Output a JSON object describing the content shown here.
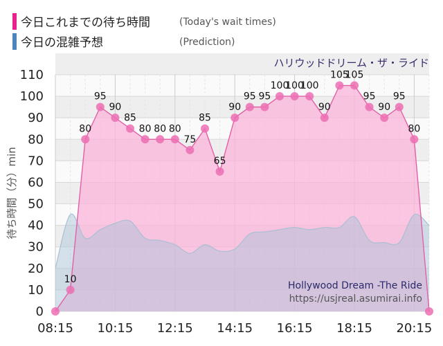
{
  "legend": {
    "today_label": "今日これまでの待ち時間",
    "today_sub": "(Today's wait times)",
    "pred_label": "今日の混雑予想",
    "pred_sub": "(Prediction)"
  },
  "watermark": {
    "attraction": "Hollywood Dream -The Ride",
    "url": "https://usjreal.asumirai.info"
  },
  "chart_data": {
    "type": "area",
    "title": "",
    "subtitle": "ハリウッドドリーム・ザ・ライド",
    "xlabel": "",
    "ylabel": "待ち時間（分）min",
    "ylim": [
      0,
      110
    ],
    "yticks": [
      0,
      10,
      20,
      30,
      40,
      50,
      60,
      70,
      80,
      90,
      100,
      110
    ],
    "x_tick_labels": [
      "08:15",
      "10:15",
      "12:15",
      "14:15",
      "16:15",
      "18:15",
      "20:15"
    ],
    "grid": true,
    "legend_position": "top-left",
    "colors": {
      "today_line": "#e060a8",
      "today_fill": "#f9b4d9",
      "today_marker": "#ec6fb3",
      "pred_line": "#a9bfd3",
      "pred_fill": "#a7c2d8",
      "legend_today": "#e8228d",
      "legend_pred": "#4a86b8",
      "band": "#eeeeee"
    },
    "series": [
      {
        "name": "今日これまでの待ち時間",
        "points": [
          {
            "t": "08:15",
            "v": 0
          },
          {
            "t": "08:45",
            "v": 10
          },
          {
            "t": "09:15",
            "v": 80
          },
          {
            "t": "09:45",
            "v": 95
          },
          {
            "t": "10:15",
            "v": 90
          },
          {
            "t": "10:45",
            "v": 85
          },
          {
            "t": "11:15",
            "v": 80
          },
          {
            "t": "11:45",
            "v": 80
          },
          {
            "t": "12:15",
            "v": 80
          },
          {
            "t": "12:45",
            "v": 75
          },
          {
            "t": "13:15",
            "v": 85
          },
          {
            "t": "13:45",
            "v": 65
          },
          {
            "t": "14:15",
            "v": 90
          },
          {
            "t": "14:45",
            "v": 95
          },
          {
            "t": "15:15",
            "v": 95
          },
          {
            "t": "15:45",
            "v": 100
          },
          {
            "t": "16:15",
            "v": 100
          },
          {
            "t": "16:45",
            "v": 100
          },
          {
            "t": "17:15",
            "v": 90
          },
          {
            "t": "17:45",
            "v": 105
          },
          {
            "t": "18:15",
            "v": 105
          },
          {
            "t": "18:45",
            "v": 95
          },
          {
            "t": "19:15",
            "v": 90
          },
          {
            "t": "19:45",
            "v": 95
          },
          {
            "t": "20:15",
            "v": 80
          },
          {
            "t": "20:45",
            "v": 0
          }
        ]
      },
      {
        "name": "今日の混雑予想",
        "points": [
          {
            "t": "08:15",
            "v": 20
          },
          {
            "t": "08:45",
            "v": 45
          },
          {
            "t": "09:15",
            "v": 34
          },
          {
            "t": "09:45",
            "v": 38
          },
          {
            "t": "10:15",
            "v": 41
          },
          {
            "t": "10:45",
            "v": 42
          },
          {
            "t": "11:15",
            "v": 34
          },
          {
            "t": "11:45",
            "v": 33
          },
          {
            "t": "12:15",
            "v": 31
          },
          {
            "t": "12:45",
            "v": 27
          },
          {
            "t": "13:15",
            "v": 31
          },
          {
            "t": "13:45",
            "v": 28
          },
          {
            "t": "14:15",
            "v": 29
          },
          {
            "t": "14:45",
            "v": 36
          },
          {
            "t": "15:15",
            "v": 37
          },
          {
            "t": "15:45",
            "v": 38
          },
          {
            "t": "16:15",
            "v": 39
          },
          {
            "t": "16:45",
            "v": 38
          },
          {
            "t": "17:15",
            "v": 39
          },
          {
            "t": "17:45",
            "v": 39
          },
          {
            "t": "18:15",
            "v": 44
          },
          {
            "t": "18:45",
            "v": 33
          },
          {
            "t": "19:15",
            "v": 32
          },
          {
            "t": "19:45",
            "v": 32
          },
          {
            "t": "20:15",
            "v": 45
          },
          {
            "t": "20:45",
            "v": 40
          }
        ]
      }
    ]
  }
}
